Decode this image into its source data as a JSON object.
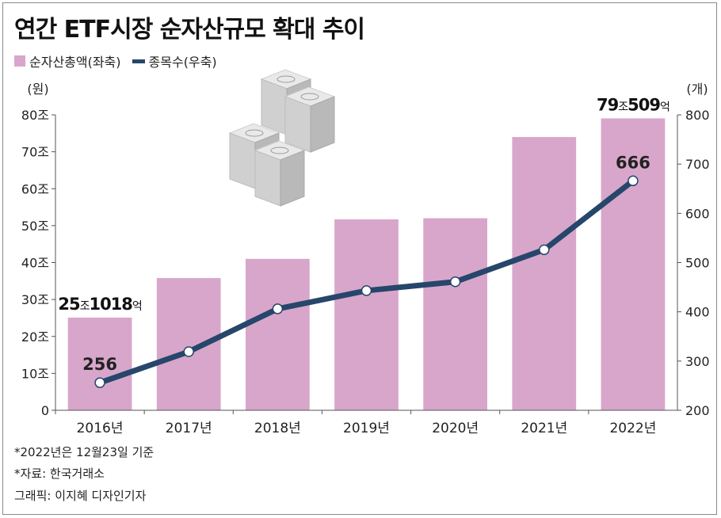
{
  "title": "연간 ETF시장 순자산규모 확대 추이",
  "legend": {
    "bar_label": "순자산총액(좌축)",
    "line_label": "종목수(우축)"
  },
  "colors": {
    "bar": "#d8a6cb",
    "line": "#26466b"
  },
  "chart_data": {
    "type": "bar+line",
    "categories": [
      "2016년",
      "2017년",
      "2018년",
      "2019년",
      "2020년",
      "2021년",
      "2022년"
    ],
    "series": [
      {
        "axis": "left",
        "type": "bar",
        "values": [
          25.1,
          35.8,
          41.0,
          51.7,
          52.0,
          74.0,
          79.05
        ]
      },
      {
        "axis": "right",
        "type": "line",
        "values": [
          256,
          319,
          406,
          443,
          461,
          526,
          666
        ]
      }
    ],
    "left_axis": {
      "unit": "(원)",
      "ylim": [
        0,
        80
      ],
      "ticks": [
        {
          "value": 0,
          "label": "0"
        },
        {
          "value": 10,
          "label": "10조"
        },
        {
          "value": 20,
          "label": "20조"
        },
        {
          "value": 30,
          "label": "30조"
        },
        {
          "value": 40,
          "label": "40조"
        },
        {
          "value": 50,
          "label": "50조"
        },
        {
          "value": 60,
          "label": "60조"
        },
        {
          "value": 70,
          "label": "70조"
        },
        {
          "value": 80,
          "label": "80조"
        }
      ]
    },
    "right_axis": {
      "unit": "(개)",
      "ylim": [
        200,
        800
      ],
      "ticks": [
        {
          "value": 200,
          "label": "200"
        },
        {
          "value": 300,
          "label": "300"
        },
        {
          "value": 400,
          "label": "400"
        },
        {
          "value": 500,
          "label": "500"
        },
        {
          "value": 600,
          "label": "600"
        },
        {
          "value": 700,
          "label": "700"
        },
        {
          "value": 800,
          "label": "800"
        }
      ]
    },
    "annotations": [
      {
        "series": 0,
        "index": 0,
        "parts": [
          {
            "t": "25",
            "big": true
          },
          {
            "t": "조",
            "big": false
          },
          {
            "t": "1018",
            "big": true
          },
          {
            "t": "억",
            "big": false
          }
        ]
      },
      {
        "series": 0,
        "index": 6,
        "parts": [
          {
            "t": "79",
            "big": true
          },
          {
            "t": "조",
            "big": false
          },
          {
            "t": "509",
            "big": true
          },
          {
            "t": "억",
            "big": false
          }
        ]
      },
      {
        "series": 1,
        "index": 0,
        "text": "256"
      },
      {
        "series": 1,
        "index": 6,
        "text": "666"
      }
    ]
  },
  "notes": [
    "*2022년은 12월23일 기준",
    "*자료: 한국거래소",
    "그래픽: 이지혜 디자인기자"
  ]
}
